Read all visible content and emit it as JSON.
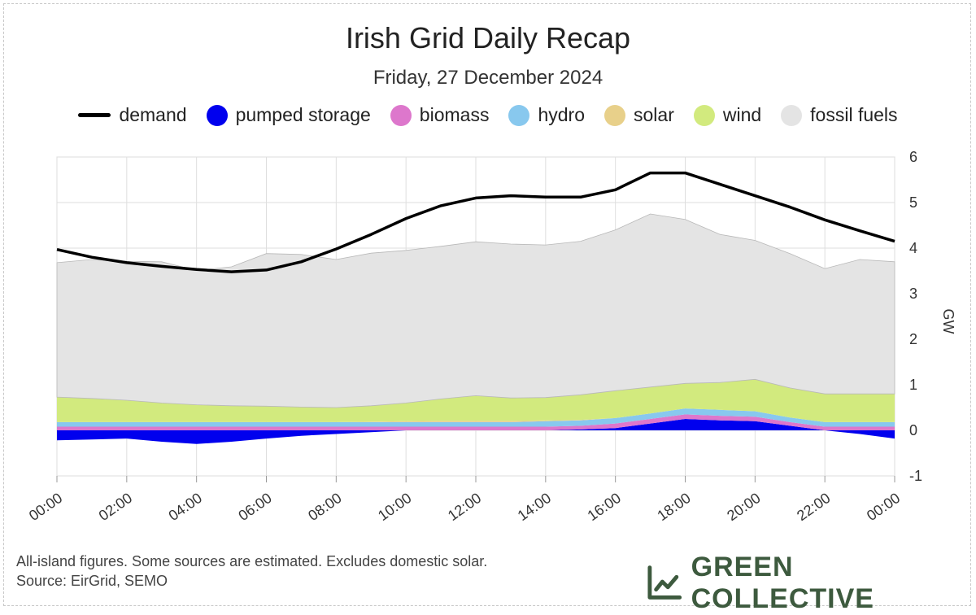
{
  "title": "Irish Grid Daily Recap",
  "subtitle": "Friday, 27 December 2024",
  "footer": {
    "line1": "All-island figures. Some sources are estimated. Excludes domestic solar.",
    "line2": "Source: EirGrid, SEMO"
  },
  "brand": {
    "name": "GREEN COLLECTIVE",
    "icon": "line-chart-icon"
  },
  "colors": {
    "demand": "#000000",
    "pumped_storage": "#0000ee",
    "biomass": "#dd77cc",
    "hydro": "#88c8ee",
    "solar": "#e8d08a",
    "wind": "#d2ea7e",
    "fossil_fuels": "#e4e4e4",
    "brand": "#3d5a3e"
  },
  "legend": [
    {
      "key": "demand",
      "label": "demand",
      "kind": "line"
    },
    {
      "key": "pumped_storage",
      "label": "pumped storage",
      "kind": "area"
    },
    {
      "key": "biomass",
      "label": "biomass",
      "kind": "area"
    },
    {
      "key": "hydro",
      "label": "hydro",
      "kind": "area"
    },
    {
      "key": "solar",
      "label": "solar",
      "kind": "area"
    },
    {
      "key": "wind",
      "label": "wind",
      "kind": "area"
    },
    {
      "key": "fossil_fuels",
      "label": "fossil fuels",
      "kind": "area"
    }
  ],
  "chart_data": {
    "type": "area",
    "title": "Irish Grid Daily Recap",
    "subtitle": "Friday, 27 December 2024",
    "xlabel": "",
    "ylabel": "GW",
    "ylim": [
      -1,
      6
    ],
    "yticks": [
      6,
      5,
      4,
      3,
      2,
      1,
      0,
      -1
    ],
    "xticks": [
      "00:00",
      "02:00",
      "04:00",
      "06:00",
      "08:00",
      "10:00",
      "12:00",
      "14:00",
      "16:00",
      "18:00",
      "20:00",
      "22:00",
      "00:00"
    ],
    "x_hours": [
      0,
      1,
      2,
      3,
      4,
      5,
      6,
      7,
      8,
      9,
      10,
      11,
      12,
      13,
      14,
      15,
      16,
      17,
      18,
      19,
      20,
      21,
      22,
      23,
      24
    ],
    "grid": true,
    "legend_position": "top",
    "series": [
      {
        "name": "pumped storage",
        "key": "pumped_storage",
        "kind": "stacked-area",
        "values": [
          -0.22,
          -0.2,
          -0.18,
          -0.25,
          -0.3,
          -0.25,
          -0.18,
          -0.12,
          -0.08,
          -0.04,
          0.0,
          0.0,
          0.0,
          0.0,
          0.0,
          0.02,
          0.05,
          0.15,
          0.25,
          0.22,
          0.2,
          0.1,
          0.0,
          -0.08,
          -0.18
        ]
      },
      {
        "name": "biomass",
        "key": "biomass",
        "kind": "stacked-area",
        "values": [
          0.08,
          0.08,
          0.08,
          0.08,
          0.08,
          0.08,
          0.08,
          0.08,
          0.08,
          0.08,
          0.08,
          0.08,
          0.08,
          0.08,
          0.08,
          0.08,
          0.1,
          0.1,
          0.1,
          0.1,
          0.1,
          0.08,
          0.08,
          0.08,
          0.08
        ]
      },
      {
        "name": "hydro",
        "key": "hydro",
        "kind": "stacked-area",
        "values": [
          0.1,
          0.1,
          0.1,
          0.1,
          0.1,
          0.1,
          0.1,
          0.1,
          0.1,
          0.1,
          0.1,
          0.1,
          0.1,
          0.1,
          0.12,
          0.12,
          0.12,
          0.12,
          0.13,
          0.13,
          0.12,
          0.1,
          0.1,
          0.1,
          0.1
        ]
      },
      {
        "name": "solar",
        "key": "solar",
        "kind": "stacked-area",
        "values": [
          0,
          0,
          0,
          0,
          0,
          0,
          0,
          0,
          0,
          0.01,
          0.02,
          0.03,
          0.03,
          0.03,
          0.02,
          0.01,
          0,
          0,
          0,
          0,
          0,
          0,
          0,
          0,
          0
        ]
      },
      {
        "name": "wind",
        "key": "wind",
        "kind": "stacked-area",
        "values": [
          0.55,
          0.52,
          0.48,
          0.42,
          0.38,
          0.36,
          0.35,
          0.33,
          0.32,
          0.35,
          0.4,
          0.48,
          0.55,
          0.5,
          0.5,
          0.55,
          0.6,
          0.58,
          0.55,
          0.6,
          0.7,
          0.65,
          0.62,
          0.62,
          0.62
        ]
      },
      {
        "name": "fossil fuels",
        "key": "fossil_fuels",
        "kind": "stacked-area",
        "values": [
          2.95,
          3.05,
          3.05,
          3.1,
          2.95,
          3.05,
          3.35,
          3.35,
          3.25,
          3.35,
          3.35,
          3.35,
          3.38,
          3.38,
          3.35,
          3.37,
          3.53,
          3.8,
          3.6,
          3.25,
          3.05,
          2.95,
          2.75,
          2.95,
          2.9
        ]
      },
      {
        "name": "demand",
        "key": "demand",
        "kind": "line",
        "values": [
          3.97,
          3.8,
          3.68,
          3.6,
          3.53,
          3.48,
          3.52,
          3.7,
          3.98,
          4.3,
          4.65,
          4.93,
          5.1,
          5.15,
          5.12,
          5.12,
          5.28,
          5.65,
          5.65,
          5.4,
          5.15,
          4.9,
          4.62,
          4.38,
          4.15
        ]
      }
    ]
  }
}
